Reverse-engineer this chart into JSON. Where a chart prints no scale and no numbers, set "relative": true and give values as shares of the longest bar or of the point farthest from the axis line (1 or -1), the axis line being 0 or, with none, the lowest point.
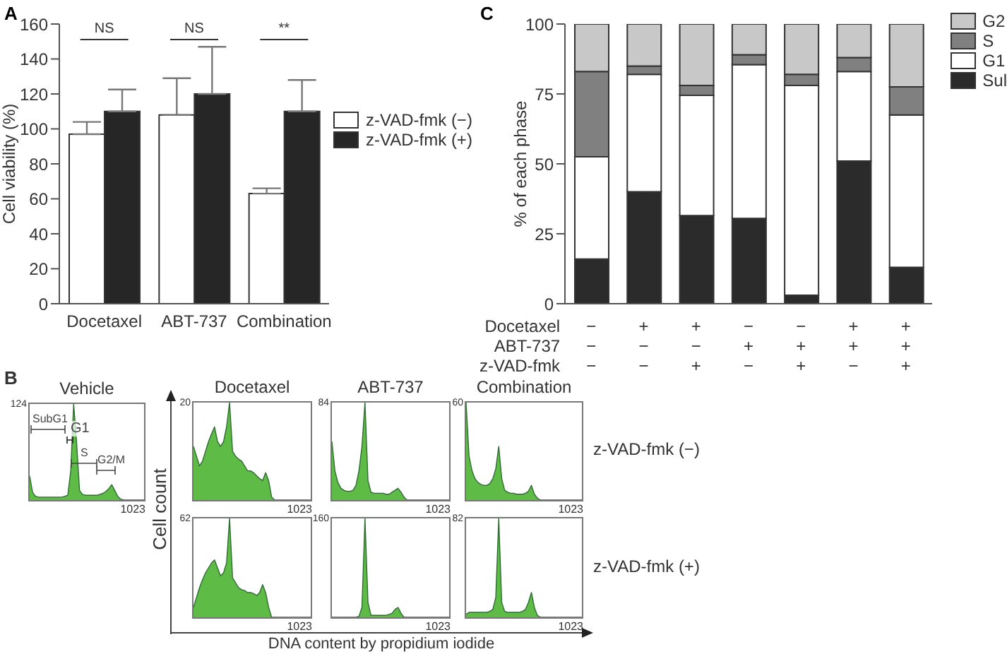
{
  "chart_data": [
    {
      "type": "bar",
      "categories": [
        "Docetaxel",
        "ABT-737",
        "Combination"
      ],
      "ylabel": "Cell viability (%)",
      "ylim": [
        0,
        160
      ],
      "yticks": [
        0,
        20,
        40,
        60,
        80,
        100,
        120,
        140,
        160
      ],
      "legend": "right",
      "series": [
        {
          "name": "z-VAD-fmk (−)",
          "color": "#ffffff",
          "values": [
            97,
            108,
            63
          ],
          "errors": [
            [
              97,
              104
            ],
            [
              108,
              129
            ],
            [
              63,
              66
            ]
          ]
        },
        {
          "name": "z-VAD-fmk (+)",
          "color": "#262626",
          "values": [
            110,
            120,
            110
          ],
          "errors": [
            [
              110,
              122.5
            ],
            [
              120,
              147
            ],
            [
              110,
              128
            ]
          ]
        }
      ],
      "annotations": [
        "A",
        "NS",
        "NS",
        "**"
      ]
    },
    {
      "type": "bar",
      "stacked": true,
      "categories": [
        "−\n−\n−",
        "+\n−\n−",
        "+\n−\n+",
        "−\n+\n−",
        "−\n+\n+",
        "+\n+\n−",
        "+\n+\n+"
      ],
      "ylabel": "% of each phase",
      "ylim": [
        0,
        100
      ],
      "yticks": [
        0,
        25,
        50,
        75,
        100
      ],
      "legend": "top right",
      "series": [
        {
          "name": "Sul",
          "color": "#2b2b2b",
          "values": [
            16,
            40,
            31.5,
            30.5,
            3,
            51,
            13
          ]
        },
        {
          "name": "G1",
          "color": "#ffffff",
          "values": [
            36.5,
            42,
            43,
            55,
            75,
            32,
            54.5
          ]
        },
        {
          "name": "S",
          "color": "#808080",
          "values": [
            30.5,
            3,
            3.5,
            3.5,
            4,
            5,
            10
          ]
        },
        {
          "name": "G2",
          "color": "#c8c8c8",
          "values": [
            17,
            15,
            22,
            11,
            18,
            12,
            22.5
          ]
        }
      ],
      "annotations": [
        "C",
        "Docetaxel",
        "ABT-737",
        "z-VAD-fmk"
      ]
    },
    {
      "type": "other",
      "annotations": [
        "B",
        "Cell count",
        "DNA content by propidium iodide",
        "z-VAD-fmk (−)",
        "z-VAD-fmk (+)"
      ]
    },
    {
      "type": "area",
      "title": "Vehicle",
      "relative": true,
      "categories": [
        null,
        null,
        null,
        null,
        null,
        null,
        null,
        null,
        null,
        null,
        null,
        null,
        null,
        null,
        null,
        null,
        null,
        null,
        null,
        null,
        null,
        null,
        null,
        null,
        null,
        null,
        null,
        null,
        null,
        null,
        null,
        null,
        null,
        null,
        null,
        null,
        null,
        null,
        null,
        null
      ],
      "series": [
        {
          "color": "#5dbb46",
          "values": [
            0.25,
            0.08,
            0.04,
            0.03,
            0.03,
            0.03,
            0.03,
            0.03,
            0.03,
            0.03,
            0.03,
            0.03,
            0.04,
            0.05,
            0.3,
            1,
            0.6,
            0.1,
            0.06,
            0.05,
            0.05,
            0.05,
            0.05,
            0.05,
            0.06,
            0.07,
            0.09,
            0.12,
            0.16,
            0.1,
            0.04,
            0.01,
            0,
            0,
            0,
            0,
            0,
            0,
            0,
            0
          ]
        }
      ],
      "annotations": [
        "124",
        "1023",
        "SubG1",
        "G1",
        "S",
        "G2/M"
      ]
    },
    {
      "type": "area",
      "title": "Docetaxel",
      "relative": true,
      "categories": [
        null,
        null,
        null,
        null,
        null,
        null,
        null,
        null,
        null,
        null,
        null,
        null,
        null,
        null,
        null,
        null,
        null,
        null,
        null,
        null,
        null,
        null,
        null,
        null,
        null,
        null,
        null,
        null,
        null,
        null,
        null,
        null,
        null,
        null,
        null,
        null,
        null,
        null,
        null,
        null
      ],
      "series": [
        {
          "color": "#5dbb46",
          "values": [
            0.55,
            0.45,
            0.35,
            0.4,
            0.5,
            0.6,
            0.68,
            0.75,
            0.6,
            0.55,
            0.6,
            0.75,
            1,
            0.5,
            0.45,
            0.42,
            0.4,
            0.35,
            0.3,
            0.3,
            0.28,
            0.25,
            0.22,
            0.2,
            0.28,
            0.2,
            0.03,
            0,
            0,
            0,
            0,
            0,
            0,
            0,
            0,
            0,
            0,
            0,
            0,
            0
          ]
        }
      ],
      "annotations": [
        "20",
        "1023"
      ]
    },
    {
      "type": "area",
      "title": "ABT-737",
      "relative": true,
      "categories": [
        null,
        null,
        null,
        null,
        null,
        null,
        null,
        null,
        null,
        null,
        null,
        null,
        null,
        null,
        null,
        null,
        null,
        null,
        null,
        null,
        null,
        null,
        null,
        null,
        null,
        null,
        null,
        null,
        null,
        null,
        null,
        null,
        null,
        null,
        null,
        null,
        null,
        null,
        null,
        null
      ],
      "series": [
        {
          "color": "#5dbb46",
          "values": [
            0.6,
            0.3,
            0.18,
            0.12,
            0.1,
            0.09,
            0.09,
            0.1,
            0.15,
            0.3,
            0.55,
            1,
            0.2,
            0.08,
            0.07,
            0.07,
            0.07,
            0.07,
            0.06,
            0.06,
            0.08,
            0.1,
            0.12,
            0.08,
            0.03,
            0,
            0,
            0,
            0,
            0,
            0,
            0,
            0,
            0,
            0,
            0,
            0,
            0,
            0,
            0
          ]
        }
      ],
      "annotations": [
        "84",
        "1023"
      ]
    },
    {
      "type": "area",
      "title": "Combination",
      "relative": true,
      "categories": [
        null,
        null,
        null,
        null,
        null,
        null,
        null,
        null,
        null,
        null,
        null,
        null,
        null,
        null,
        null,
        null,
        null,
        null,
        null,
        null,
        null,
        null,
        null,
        null,
        null,
        null,
        null,
        null,
        null,
        null,
        null,
        null,
        null,
        null,
        null,
        null,
        null,
        null,
        null,
        null
      ],
      "series": [
        {
          "color": "#5dbb46",
          "values": [
            1,
            0.45,
            0.3,
            0.22,
            0.18,
            0.16,
            0.15,
            0.15,
            0.17,
            0.22,
            0.32,
            0.55,
            0.22,
            0.1,
            0.08,
            0.07,
            0.07,
            0.06,
            0.06,
            0.06,
            0.07,
            0.09,
            0.15,
            0.06,
            0.02,
            0,
            0,
            0,
            0,
            0,
            0,
            0,
            0,
            0,
            0,
            0,
            0,
            0,
            0,
            0
          ]
        }
      ],
      "annotations": [
        "60",
        "1023"
      ]
    },
    {
      "type": "area",
      "relative": true,
      "categories": [
        null,
        null,
        null,
        null,
        null,
        null,
        null,
        null,
        null,
        null,
        null,
        null,
        null,
        null,
        null,
        null,
        null,
        null,
        null,
        null,
        null,
        null,
        null,
        null,
        null,
        null,
        null,
        null,
        null,
        null,
        null,
        null,
        null,
        null,
        null,
        null,
        null,
        null,
        null,
        null
      ],
      "series": [
        {
          "color": "#5dbb46",
          "values": [
            0.1,
            0.2,
            0.3,
            0.38,
            0.45,
            0.5,
            0.55,
            0.58,
            0.5,
            0.42,
            0.45,
            0.55,
            1,
            0.4,
            0.35,
            0.3,
            0.28,
            0.27,
            0.25,
            0.25,
            0.24,
            0.22,
            0.25,
            0.33,
            0.25,
            0.1,
            0,
            0,
            0,
            0,
            0,
            0,
            0,
            0,
            0,
            0,
            0,
            0,
            0,
            0
          ]
        }
      ],
      "annotations": [
        "62",
        "1023"
      ]
    },
    {
      "type": "area",
      "relative": true,
      "categories": [
        null,
        null,
        null,
        null,
        null,
        null,
        null,
        null,
        null,
        null,
        null,
        null,
        null,
        null,
        null,
        null,
        null,
        null,
        null,
        null,
        null,
        null,
        null,
        null,
        null,
        null,
        null,
        null,
        null,
        null,
        null,
        null,
        null,
        null,
        null,
        null,
        null,
        null,
        null,
        null
      ],
      "series": [
        {
          "color": "#5dbb46",
          "values": [
            0,
            0,
            0,
            0,
            0,
            0,
            0,
            0,
            0,
            0.01,
            0.1,
            1,
            0.15,
            0.02,
            0.02,
            0.02,
            0.02,
            0.02,
            0.02,
            0.03,
            0.04,
            0.08,
            0.1,
            0.04,
            0,
            0,
            0,
            0,
            0,
            0,
            0,
            0,
            0,
            0,
            0,
            0,
            0,
            0,
            0,
            0
          ]
        }
      ],
      "annotations": [
        "160",
        "1023"
      ]
    },
    {
      "type": "area",
      "relative": true,
      "categories": [
        null,
        null,
        null,
        null,
        null,
        null,
        null,
        null,
        null,
        null,
        null,
        null,
        null,
        null,
        null,
        null,
        null,
        null,
        null,
        null,
        null,
        null,
        null,
        null,
        null,
        null,
        null,
        null,
        null,
        null,
        null,
        null,
        null,
        null,
        null,
        null,
        null,
        null,
        null,
        null
      ],
      "series": [
        {
          "color": "#5dbb46",
          "values": [
            0.03,
            0.05,
            0.05,
            0.05,
            0.05,
            0.05,
            0.05,
            0.05,
            0.06,
            0.08,
            0.2,
            1,
            0.15,
            0.06,
            0.05,
            0.05,
            0.05,
            0.05,
            0.05,
            0.06,
            0.08,
            0.15,
            0.25,
            0.1,
            0.02,
            0,
            0,
            0,
            0,
            0,
            0,
            0,
            0,
            0,
            0,
            0,
            0,
            0,
            0,
            0
          ]
        }
      ],
      "annotations": [
        "82",
        "1023"
      ]
    }
  ]
}
